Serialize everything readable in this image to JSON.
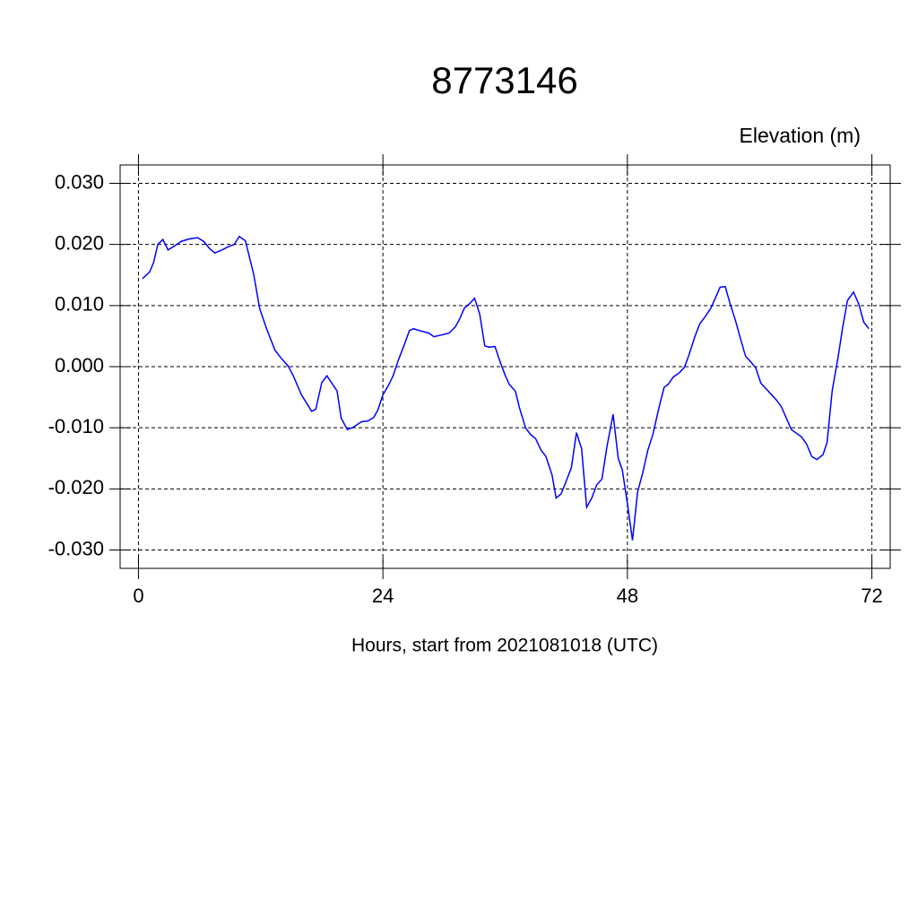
{
  "chart_data": {
    "type": "line",
    "title": "8773146",
    "subtitle": "Elevation (m)",
    "x_label": "Hours, start from 2021081018 (UTC)",
    "xlim": [
      -1.8,
      73.8
    ],
    "ylim": [
      -0.033,
      0.033
    ],
    "xticks": [
      0,
      24,
      48,
      72
    ],
    "yticks": [
      {
        "value": -0.03,
        "label": "-0.030"
      },
      {
        "value": -0.02,
        "label": "-0.020"
      },
      {
        "value": -0.01,
        "label": "-0.010"
      },
      {
        "value": 0,
        "label": "0.000"
      },
      {
        "value": 0.01,
        "label": "0.010"
      },
      {
        "value": 0.02,
        "label": "0.020"
      },
      {
        "value": 0.03,
        "label": "0.030"
      }
    ],
    "grid": true,
    "x": [
      0.4,
      1.1,
      1.5,
      1.9,
      2.4,
      2.9,
      3.5,
      4.2,
      5.0,
      5.8,
      6.4,
      7.0,
      7.5,
      8.2,
      8.8,
      9.4,
      9.9,
      10.5,
      11.3,
      11.9,
      12.6,
      13.4,
      14.0,
      14.7,
      15.2,
      16.0,
      17.0,
      17.4,
      18.0,
      18.5,
      19.5,
      19.9,
      20.5,
      21.1,
      21.9,
      22.5,
      23.1,
      23.5,
      24.0,
      24.5,
      25.0,
      25.5,
      26.1,
      26.6,
      27.0,
      27.8,
      28.5,
      29.0,
      29.8,
      30.5,
      31.1,
      31.5,
      32.0,
      32.5,
      33.0,
      33.5,
      34.0,
      34.4,
      35.0,
      35.5,
      36.0,
      36.4,
      37.0,
      37.4,
      38.0,
      38.5,
      39.0,
      39.5,
      40.0,
      40.6,
      41.0,
      41.5,
      42.0,
      42.5,
      43.0,
      43.5,
      44.0,
      44.5,
      45.0,
      45.5,
      46.0,
      46.6,
      47.1,
      47.5,
      48.0,
      48.5,
      49.0,
      49.5,
      50.0,
      50.5,
      51.1,
      51.6,
      52.0,
      52.5,
      53.1,
      53.6,
      54.0,
      54.6,
      55.1,
      55.6,
      56.2,
      56.6,
      57.1,
      57.6,
      58.1,
      58.6,
      59.1,
      59.6,
      60.1,
      60.6,
      61.1,
      61.6,
      62.1,
      62.6,
      63.1,
      63.6,
      64.1,
      64.6,
      65.1,
      65.6,
      66.1,
      66.6,
      67.2,
      67.6,
      68.1,
      68.7,
      69.1,
      69.6,
      70.2,
      70.7,
      71.2,
      71.7
    ],
    "series": [
      {
        "name": "Elevation",
        "color": "#0000ff",
        "values": [
          0.0144,
          0.0155,
          0.0171,
          0.02,
          0.0208,
          0.0191,
          0.0197,
          0.0205,
          0.0209,
          0.0211,
          0.0205,
          0.0193,
          0.0186,
          0.0191,
          0.0196,
          0.02,
          0.0213,
          0.0206,
          0.0152,
          0.0095,
          0.0061,
          0.0027,
          0.0014,
          0.0001,
          -0.0015,
          -0.0046,
          -0.0073,
          -0.007,
          -0.0026,
          -0.0015,
          -0.004,
          -0.0084,
          -0.0103,
          -0.0099,
          -0.009,
          -0.0089,
          -0.0083,
          -0.0071,
          -0.0046,
          -0.0032,
          -0.0015,
          0.001,
          0.0036,
          0.0059,
          0.0062,
          0.0058,
          0.0055,
          0.0049,
          0.0052,
          0.0055,
          0.0065,
          0.0077,
          0.0096,
          0.0103,
          0.0112,
          0.0086,
          0.0034,
          0.0032,
          0.0033,
          0.0008,
          -0.0014,
          -0.0029,
          -0.004,
          -0.0067,
          -0.01,
          -0.0111,
          -0.0118,
          -0.0136,
          -0.0147,
          -0.0177,
          -0.0215,
          -0.0208,
          -0.0187,
          -0.0165,
          -0.0108,
          -0.0134,
          -0.023,
          -0.0215,
          -0.0193,
          -0.0184,
          -0.013,
          -0.0078,
          -0.015,
          -0.0169,
          -0.0224,
          -0.0284,
          -0.0205,
          -0.0174,
          -0.0137,
          -0.0111,
          -0.0067,
          -0.0034,
          -0.0029,
          -0.0017,
          -0.001,
          -0.0001,
          0.0017,
          0.0048,
          0.007,
          0.0081,
          0.0096,
          0.0111,
          0.013,
          0.0131,
          0.0102,
          0.0076,
          0.0046,
          0.0017,
          0.0008,
          -0.0002,
          -0.0027,
          -0.0036,
          -0.0045,
          -0.0054,
          -0.0065,
          -0.0084,
          -0.0103,
          -0.0109,
          -0.0115,
          -0.0127,
          -0.0147,
          -0.0152,
          -0.0144,
          -0.0124,
          -0.004,
          0.0017,
          0.0061,
          0.0108,
          0.0122,
          0.0103,
          0.0073,
          0.0062
        ]
      }
    ]
  }
}
